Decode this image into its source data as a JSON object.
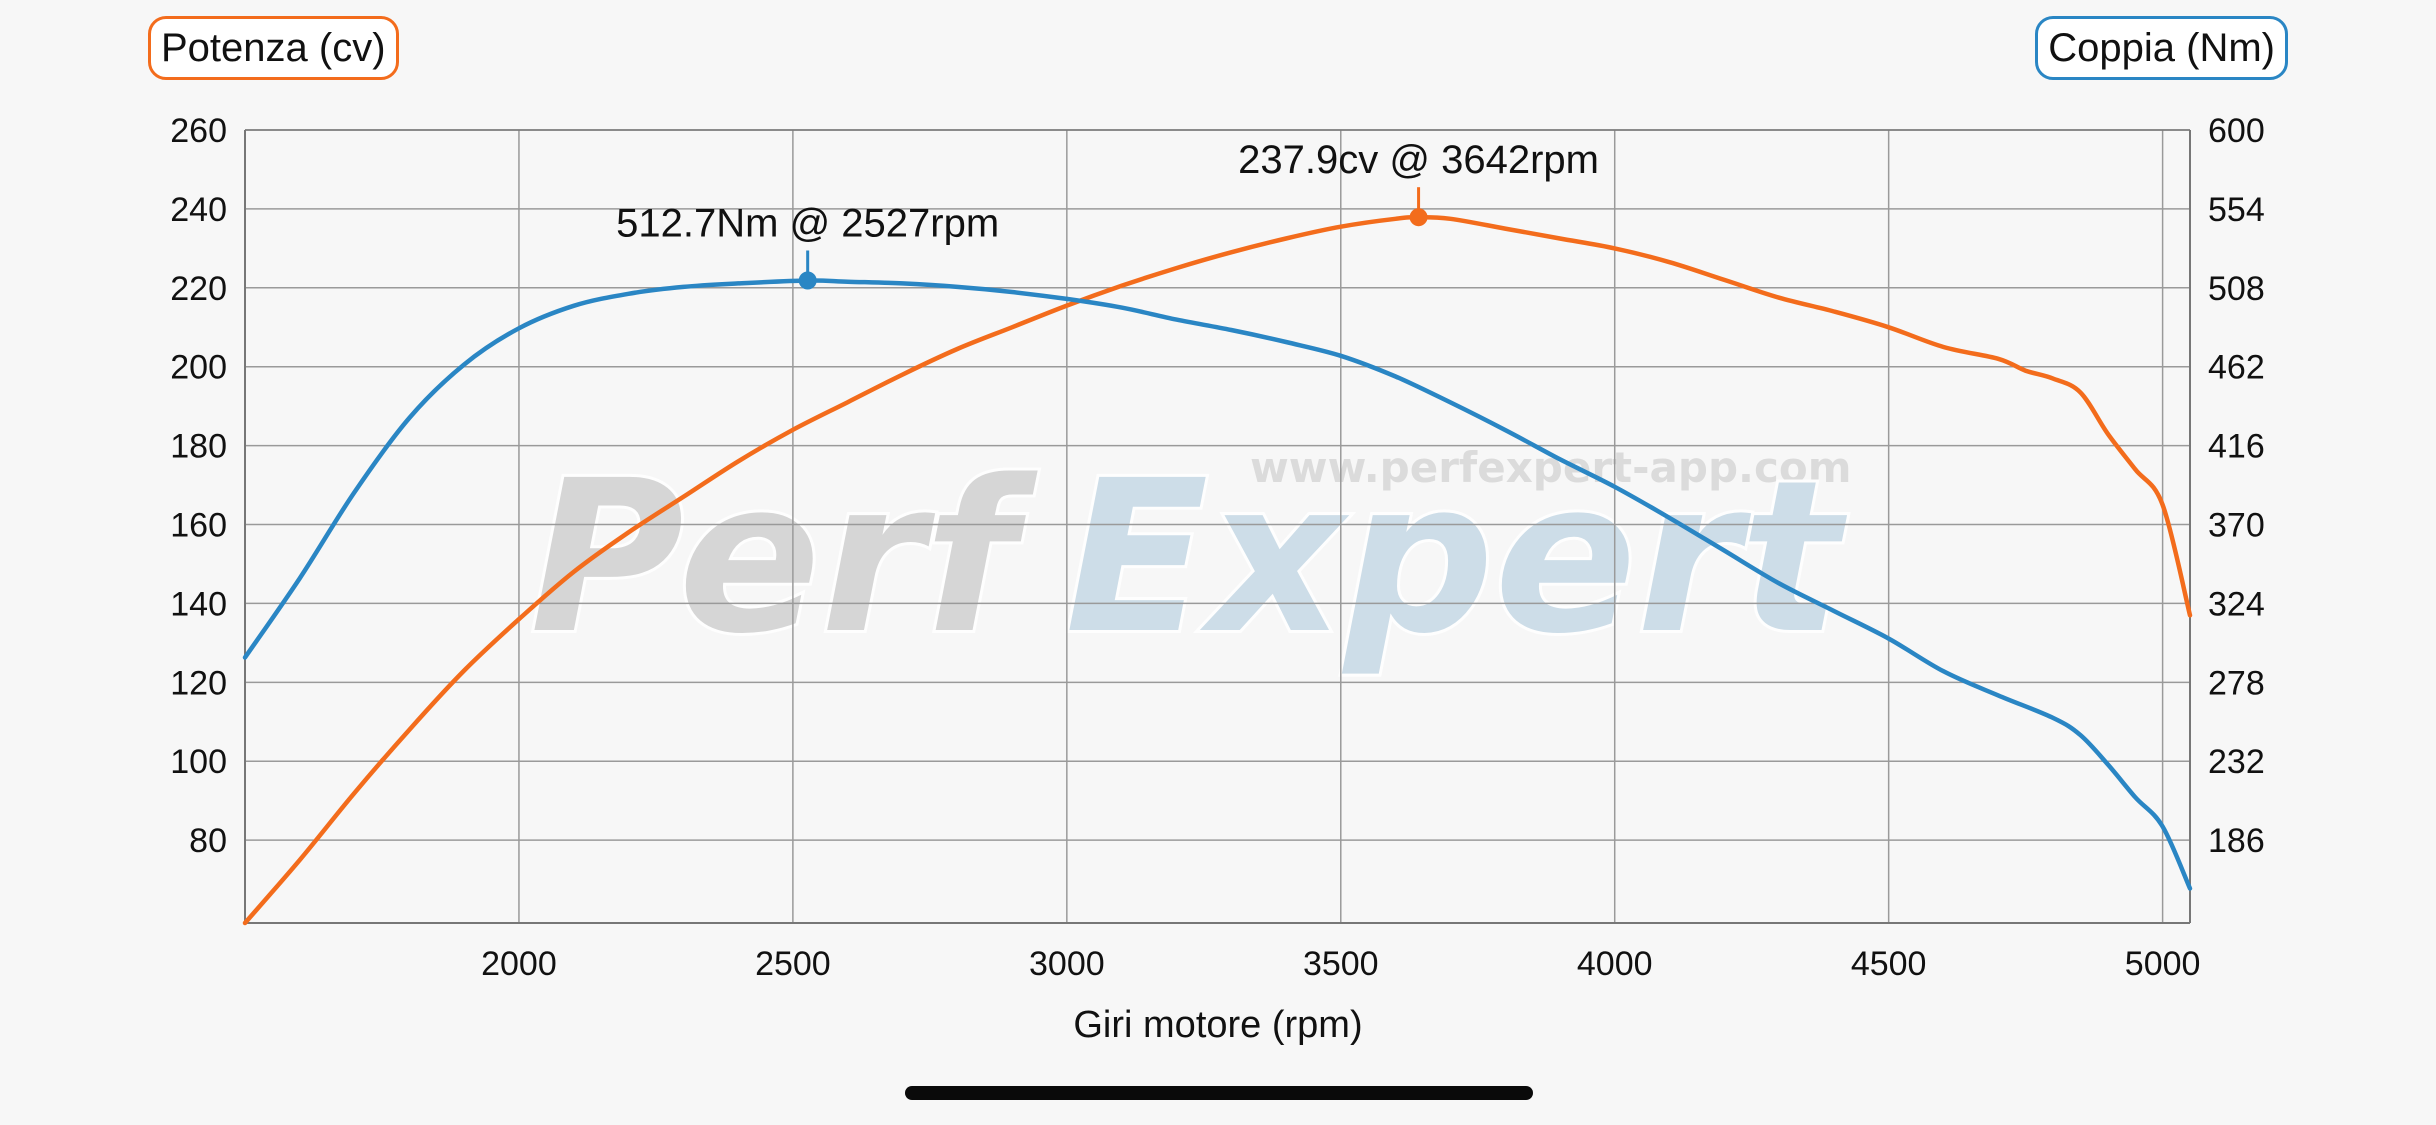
{
  "badges": {
    "left_label": "Potenza (cv)",
    "right_label": "Coppia (Nm)"
  },
  "watermark": {
    "brand_left": "Perf",
    "brand_right": "Expert",
    "url": "www.perfexpert-app.com"
  },
  "colors": {
    "power": "#f36c1c",
    "torque": "#2a86c4",
    "grid": "#9a9a9a",
    "background": "#f7f7f7"
  },
  "chart_data": {
    "type": "line",
    "title": "",
    "xlabel": "Giri motore (rpm)",
    "ylabel_left": "Potenza (cv)",
    "ylabel_right": "Coppia (Nm)",
    "xlim": [
      1500,
      5050
    ],
    "ylim_left": [
      59,
      260
    ],
    "ylim_right": [
      140,
      600
    ],
    "x_ticks": [
      2000,
      2500,
      3000,
      3500,
      4000,
      4500,
      5000
    ],
    "y_ticks_left": [
      80,
      100,
      120,
      140,
      160,
      180,
      200,
      220,
      240,
      260
    ],
    "y_ticks_right": [
      186,
      232,
      278,
      324,
      370,
      416,
      462,
      508,
      554,
      600
    ],
    "grid": true,
    "series": [
      {
        "name": "Potenza (cv)",
        "axis": "left",
        "x": [
          1500,
          1600,
          1700,
          1800,
          1900,
          2000,
          2100,
          2200,
          2300,
          2400,
          2500,
          2600,
          2700,
          2800,
          2900,
          3000,
          3100,
          3200,
          3300,
          3400,
          3500,
          3600,
          3642,
          3700,
          3800,
          3900,
          4000,
          4100,
          4200,
          4300,
          4400,
          4500,
          4600,
          4700,
          4750,
          4800,
          4850,
          4900,
          4950,
          5000,
          5050
        ],
        "values": [
          59,
          75,
          92,
          108,
          123,
          136,
          148,
          158,
          167,
          176,
          184,
          191,
          198,
          204.5,
          210,
          215.5,
          220.5,
          225,
          229,
          232.5,
          235.5,
          237.5,
          237.9,
          237.5,
          235,
          232.5,
          230,
          226.5,
          222,
          217.5,
          214,
          210,
          205,
          202,
          199,
          197,
          193.5,
          183,
          174,
          165,
          137
        ]
      },
      {
        "name": "Coppia (Nm)",
        "axis": "right",
        "x": [
          1500,
          1600,
          1700,
          1800,
          1900,
          2000,
          2100,
          2200,
          2300,
          2400,
          2527,
          2600,
          2700,
          2800,
          2900,
          3000,
          3100,
          3200,
          3300,
          3400,
          3500,
          3600,
          3700,
          3800,
          3900,
          4000,
          4100,
          4200,
          4300,
          4400,
          4500,
          4600,
          4700,
          4800,
          4850,
          4900,
          4950,
          5000,
          5050
        ],
        "values": [
          294,
          340,
          390,
          433,
          464,
          485,
          498,
          505,
          509,
          511,
          512.7,
          512,
          511,
          509,
          506,
          502,
          497,
          490,
          484,
          477,
          469,
          457,
          442,
          426,
          409,
          393,
          375,
          356,
          337,
          321,
          305,
          286,
          272,
          259,
          249,
          232,
          213,
          196,
          160
        ]
      }
    ],
    "annotations": [
      {
        "series": "Coppia (Nm)",
        "x": 2527,
        "y": 512.7,
        "label": "512.7Nm @ 2527rpm"
      },
      {
        "series": "Potenza (cv)",
        "x": 3642,
        "y": 237.9,
        "label": "237.9cv @ 3642rpm"
      }
    ]
  }
}
